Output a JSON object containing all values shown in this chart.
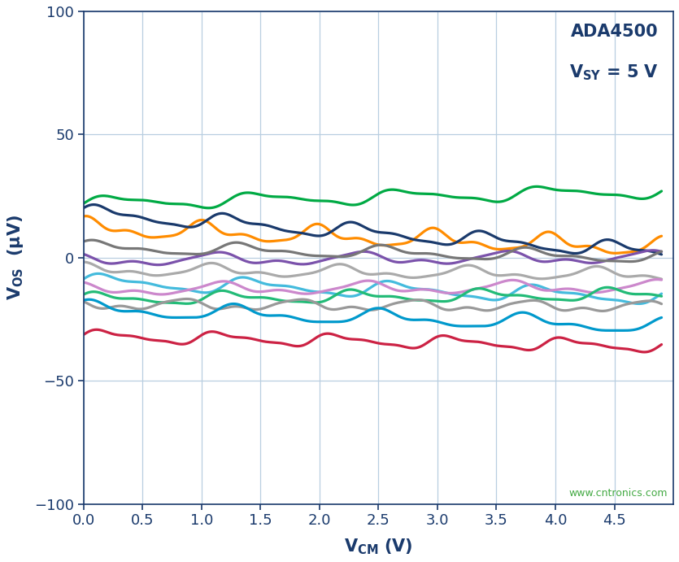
{
  "background_color": "#ffffff",
  "grid_color": "#b8cee0",
  "axis_color": "#1a3a6c",
  "xlim": [
    0,
    5.0
  ],
  "ylim": [
    -100,
    100
  ],
  "xticks": [
    0,
    0.5,
    1.0,
    1.5,
    2.0,
    2.5,
    3.0,
    3.5,
    4.0,
    4.5
  ],
  "yticks": [
    -100,
    -50,
    0,
    50,
    100
  ],
  "watermark": "www.cntronics.com",
  "lines": [
    {
      "color": "#00aa44",
      "base": 22,
      "slope": 5,
      "amp": 2.2,
      "freq": 4.0,
      "phase": 0.0
    },
    {
      "color": "#ff8c00",
      "base": 12,
      "slope": -8,
      "amp": 3.0,
      "freq": 5.0,
      "phase": 1.2
    },
    {
      "color": "#1a3a6c",
      "base": 18,
      "slope": -16,
      "amp": 2.5,
      "freq": 4.5,
      "phase": 0.5
    },
    {
      "color": "#7b52ab",
      "base": -1,
      "slope": 1,
      "amp": 2.0,
      "freq": 4.0,
      "phase": 2.1
    },
    {
      "color": "#777777",
      "base": 4,
      "slope": -4,
      "amp": 2.0,
      "freq": 4.0,
      "phase": 0.8
    },
    {
      "color": "#aaaaaa",
      "base": -5,
      "slope": -2,
      "amp": 2.0,
      "freq": 4.5,
      "phase": 1.5
    },
    {
      "color": "#44bbdd",
      "base": -10,
      "slope": -6,
      "amp": 2.5,
      "freq": 4.0,
      "phase": 0.3
    },
    {
      "color": "#cc88cc",
      "base": -13,
      "slope": 1,
      "amp": 2.0,
      "freq": 4.0,
      "phase": 1.8
    },
    {
      "color": "#22bb77",
      "base": -17,
      "slope": 2,
      "amp": 2.0,
      "freq": 4.5,
      "phase": 0.6
    },
    {
      "color": "#999999",
      "base": -19,
      "slope": -1,
      "amp": 1.8,
      "freq": 5.0,
      "phase": 2.5
    },
    {
      "color": "#0099cc",
      "base": -21,
      "slope": -7,
      "amp": 2.5,
      "freq": 4.0,
      "phase": 1.0
    },
    {
      "color": "#cc2244",
      "base": -32,
      "slope": -4,
      "amp": 2.0,
      "freq": 5.0,
      "phase": 0.2
    }
  ]
}
